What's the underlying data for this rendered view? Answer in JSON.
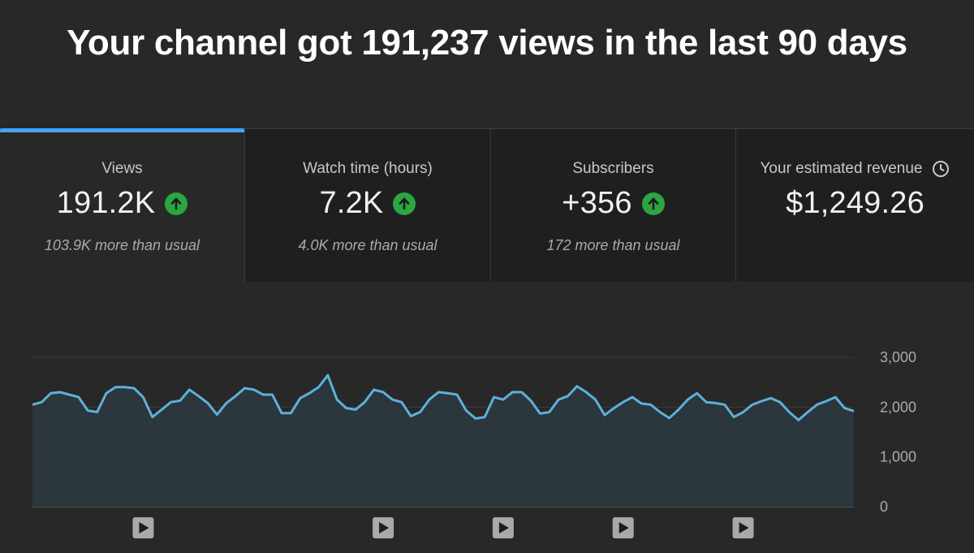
{
  "header": {
    "title": "Your channel got 191,237 views in the last 90 days"
  },
  "metrics": [
    {
      "label": "Views",
      "value": "191.2K",
      "trend": "up",
      "note": "103.9K more than usual",
      "active": true
    },
    {
      "label": "Watch time (hours)",
      "value": "7.2K",
      "trend": "up",
      "note": "4.0K more than usual",
      "active": false
    },
    {
      "label": "Subscribers",
      "value": "+356",
      "trend": "up",
      "note": "172 more than usual",
      "active": false
    },
    {
      "label": "Your estimated revenue",
      "value": "$1,249.26",
      "trend": "none",
      "note": "",
      "active": false,
      "icon": "clock-icon"
    }
  ],
  "colors": {
    "accent": "#3ea6ff",
    "trend_up": "#2ba640",
    "line": "#5fb0d8",
    "area": "#2b363d"
  },
  "chart_data": {
    "type": "area",
    "title": "",
    "xlabel": "",
    "ylabel": "",
    "ylim": [
      0,
      3000
    ],
    "yticks": [
      "3,000",
      "2,000",
      "1,000",
      "0"
    ],
    "ytick_values": [
      3000,
      2000,
      1000,
      0
    ],
    "grid": true,
    "series": [
      {
        "values": [
          2050,
          2100,
          2280,
          2300,
          2250,
          2200,
          1930,
          1900,
          2280,
          2400,
          2400,
          2380,
          2200,
          1800,
          1950,
          2100,
          2130,
          2350,
          2220,
          2080,
          1850,
          2080,
          2220,
          2380,
          2350,
          2250,
          2250,
          1880,
          1880,
          2180,
          2280,
          2400,
          2640,
          2150,
          1980,
          1950,
          2100,
          2350,
          2300,
          2150,
          2100,
          1820,
          1900,
          2150,
          2300,
          2280,
          2250,
          1930,
          1770,
          1800,
          2200,
          2150,
          2300,
          2300,
          2130,
          1870,
          1900,
          2150,
          2220,
          2420,
          2300,
          2150,
          1840,
          1980,
          2100,
          2200,
          2070,
          2050,
          1900,
          1780,
          1950,
          2150,
          2280,
          2100,
          2080,
          2050,
          1800,
          1900,
          2050,
          2120,
          2180,
          2100,
          1900,
          1740,
          1900,
          2050,
          2120,
          2200,
          1980,
          1920
        ]
      }
    ],
    "video_markers": [
      12,
      38,
      51,
      64,
      77
    ],
    "video_marker_icon": "play-icon"
  }
}
